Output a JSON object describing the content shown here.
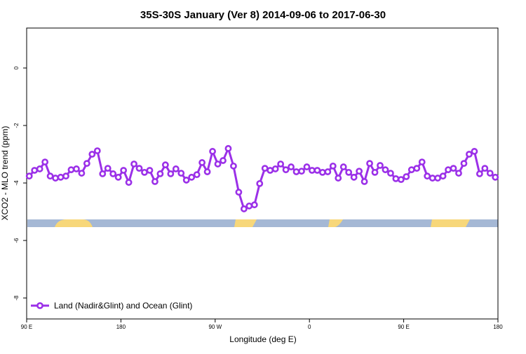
{
  "chart_data": {
    "type": "line",
    "title": "35S-30S January (Ver 8)   2014-09-06 to 2017-06-30",
    "x_label": "Longitude (deg E)",
    "y_label": "XCO2 - MLO trend (ppm)",
    "x": [
      92.5,
      97.5,
      102.5,
      107.5,
      112.5,
      117.5,
      122.5,
      127.5,
      132.5,
      137.5,
      142.5,
      147.5,
      152.5,
      157.5,
      162.5,
      167.5,
      172.5,
      177.5,
      182.5,
      187.5,
      192.5,
      197.5,
      202.5,
      207.5,
      212.5,
      217.5,
      222.5,
      227.5,
      232.5,
      237.5,
      242.5,
      247.5,
      252.5,
      257.5,
      262.5,
      267.5,
      272.5,
      277.5,
      282.5,
      287.5,
      292.5,
      297.5,
      302.5,
      307.5,
      312.5,
      317.5,
      322.5,
      327.5,
      332.5,
      337.5,
      342.5,
      347.5,
      352.5,
      357.5,
      362.5,
      367.5,
      372.5,
      377.5,
      382.5,
      387.5,
      392.5,
      397.5,
      402.5,
      407.5,
      412.5,
      417.5,
      422.5,
      427.5,
      432.5,
      437.5,
      442.5,
      447.5,
      452.5,
      457.5,
      462.5,
      467.5,
      472.5,
      477.5,
      482.5,
      487.5,
      492.5,
      497.5,
      502.5,
      507.5,
      512.5,
      517.5,
      522.5,
      527.5,
      532.5,
      537.5
    ],
    "series": [
      {
        "name": "Land (Nadir&Glint) and Ocean (Glint)",
        "color": "#9b30e8",
        "values": [
          -3.76,
          -3.56,
          -3.51,
          -3.27,
          -3.76,
          -3.83,
          -3.8,
          -3.76,
          -3.54,
          -3.51,
          -3.66,
          -3.32,
          -3.0,
          -2.88,
          -3.68,
          -3.49,
          -3.68,
          -3.8,
          -3.56,
          -3.98,
          -3.34,
          -3.49,
          -3.63,
          -3.56,
          -3.95,
          -3.68,
          -3.37,
          -3.68,
          -3.51,
          -3.66,
          -3.9,
          -3.8,
          -3.71,
          -3.29,
          -3.61,
          -2.9,
          -3.34,
          -3.22,
          -2.8,
          -3.41,
          -4.32,
          -4.9,
          -4.8,
          -4.76,
          -4.02,
          -3.49,
          -3.56,
          -3.51,
          -3.34,
          -3.54,
          -3.44,
          -3.61,
          -3.59,
          -3.44,
          -3.56,
          -3.56,
          -3.63,
          -3.61,
          -3.41,
          -3.83,
          -3.44,
          -3.63,
          -3.8,
          -3.59,
          -3.95,
          -3.32,
          -3.63,
          -3.39,
          -3.54,
          -3.66,
          -3.85,
          -3.88,
          -3.78,
          -3.54,
          -3.49,
          -3.27,
          -3.76,
          -3.83,
          -3.83,
          -3.76,
          -3.54,
          -3.49,
          -3.66,
          -3.32,
          -3.0,
          -2.9,
          -3.68,
          -3.49,
          -3.66,
          -3.8
        ]
      }
    ],
    "xlim": [
      90,
      540
    ],
    "xticks": [
      {
        "value": 90,
        "label": "90 E"
      },
      180,
      {
        "value": 270,
        "label": "90 W"
      },
      {
        "value": 360,
        "label": "0"
      },
      {
        "value": 450,
        "label": "90 E"
      },
      {
        "value": 540,
        "label": "180"
      }
    ],
    "ylim": [
      -8.73,
      1.39
    ],
    "yticks": [
      0,
      -2,
      -4,
      -6,
      -8
    ],
    "legend": "bottom-left"
  }
}
